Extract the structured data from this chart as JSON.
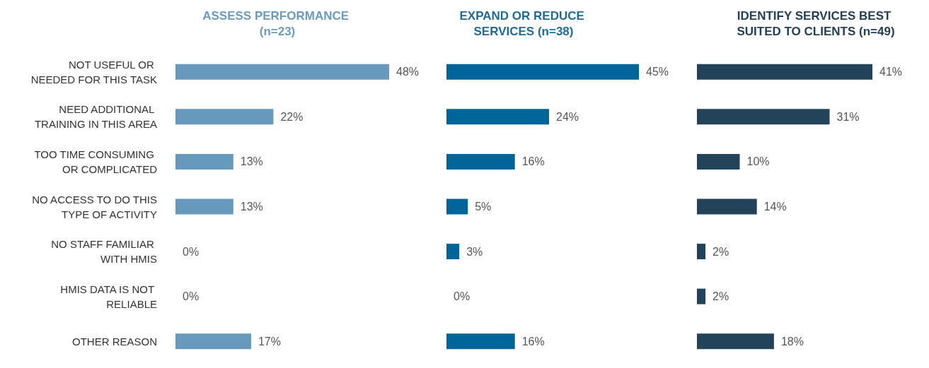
{
  "chart_data": [
    {
      "type": "bar",
      "orientation": "horizontal",
      "title": "ASSESS PERFORMANCE (n=23)",
      "categories": [
        "NOT USEFUL OR NEEDED FOR THIS TASK",
        "NEED ADDITIONAL TRAINING IN THIS AREA",
        "TOO TIME CONSUMING OR COMPLICATED",
        "NO ACCESS TO DO THIS TYPE OF ACTIVITY",
        "NO STAFF FAMILIAR WITH HMIS",
        "HMIS DATA IS NOT RELIABLE",
        "OTHER REASON"
      ],
      "values": [
        48,
        22,
        13,
        13,
        0,
        0,
        17
      ],
      "value_labels": [
        "48%",
        "22%",
        "13%",
        "13%",
        "0%",
        "0%",
        "17%"
      ],
      "color": "#6699bb",
      "tick_labels": "y",
      "grid": false
    },
    {
      "type": "bar",
      "orientation": "horizontal",
      "title": "EXPAND OR REDUCE SERVICES (n=38)",
      "categories": [
        "NOT USEFUL OR NEEDED FOR THIS TASK",
        "NEED ADDITIONAL TRAINING IN THIS AREA",
        "TOO TIME CONSUMING OR COMPLICATED",
        "NO ACCESS TO DO THIS TYPE OF ACTIVITY",
        "NO STAFF FAMILIAR WITH HMIS",
        "HMIS DATA IS NOT RELIABLE",
        "OTHER REASON"
      ],
      "values": [
        45,
        24,
        16,
        5,
        3,
        0,
        16
      ],
      "value_labels": [
        "45%",
        "24%",
        "16%",
        "5%",
        "3%",
        "0%",
        "16%"
      ],
      "color": "#00669a",
      "tick_labels": false,
      "grid": false
    },
    {
      "type": "bar",
      "orientation": "horizontal",
      "title": "IDENTIFY SERVICES BEST SUITED TO CLIENTS (n=49)",
      "categories": [
        "NOT USEFUL OR NEEDED FOR THIS TASK",
        "NEED ADDITIONAL TRAINING IN THIS AREA",
        "TOO TIME CONSUMING OR COMPLICATED",
        "NO ACCESS TO DO THIS TYPE OF ACTIVITY",
        "NO STAFF FAMILIAR WITH HMIS",
        "HMIS DATA IS NOT RELIABLE",
        "OTHER REASON"
      ],
      "values": [
        41,
        31,
        10,
        14,
        2,
        2,
        18
      ],
      "value_labels": [
        "41%",
        "31%",
        "10%",
        "14%",
        "2%",
        "2%",
        "18%"
      ],
      "color": "#22435a",
      "tick_labels": false,
      "grid": false
    }
  ]
}
